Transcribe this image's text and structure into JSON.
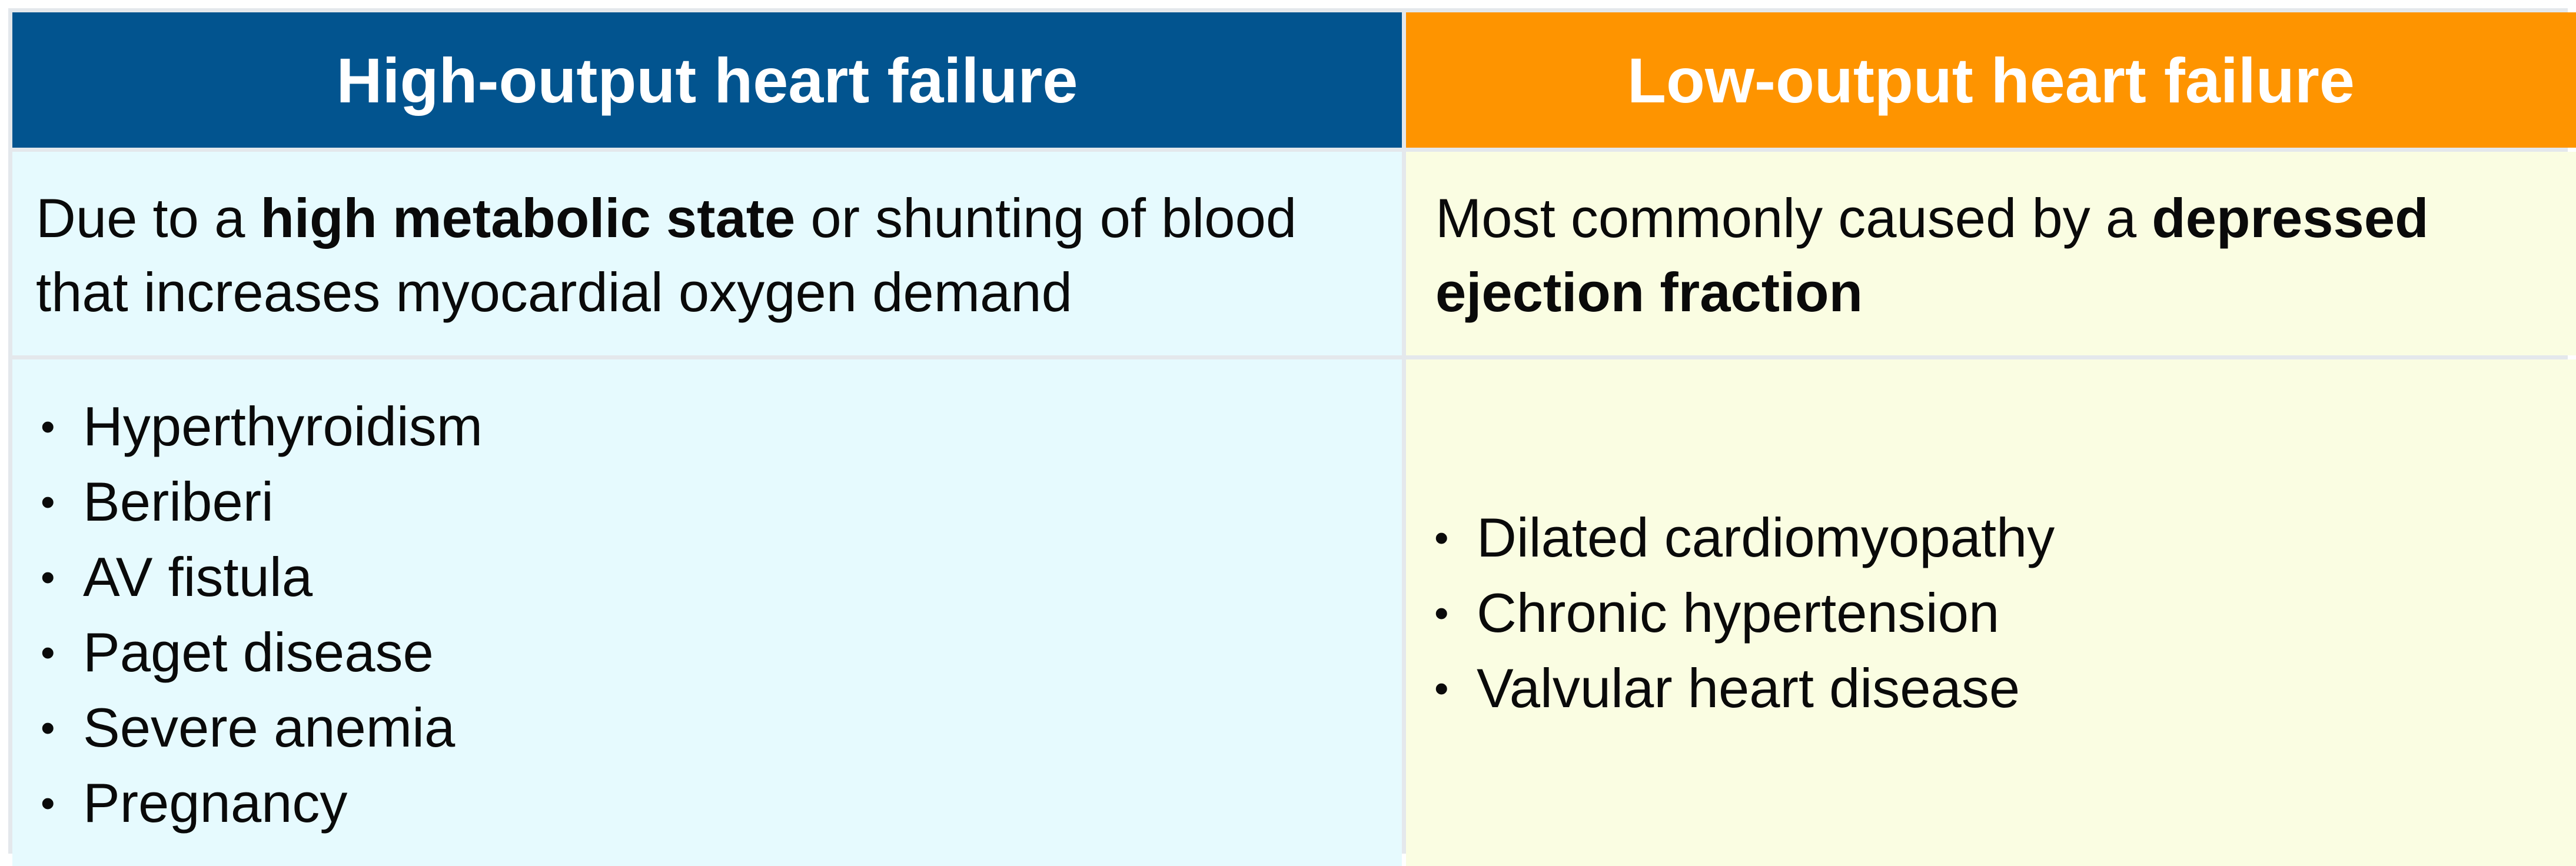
{
  "high_output": {
    "header": "High-output heart failure",
    "header_color": "#02548f",
    "cell_color": "#e6fafe",
    "description": [
      {
        "text": "Due to a ",
        "bold": false
      },
      {
        "text": "high metabolic state",
        "bold": true
      },
      {
        "text": " or shunting of blood that increases myocardial oxygen demand",
        "bold": false
      }
    ],
    "causes": [
      "Hyperthyroidism",
      "Beriberi",
      "AV fistula",
      "Paget disease",
      "Severe anemia",
      "Pregnancy"
    ]
  },
  "low_output": {
    "header": "Low-output heart failure",
    "header_color": "#fe9400",
    "cell_color": "#fafde2",
    "description": [
      {
        "text": "Most commonly caused by a ",
        "bold": false
      },
      {
        "text": "depressed ejection fraction",
        "bold": true
      }
    ],
    "causes": [
      "Dilated cardiomyopathy",
      "Chronic hypertension",
      "Valvular heart disease"
    ]
  },
  "bullet_glyph": "•"
}
